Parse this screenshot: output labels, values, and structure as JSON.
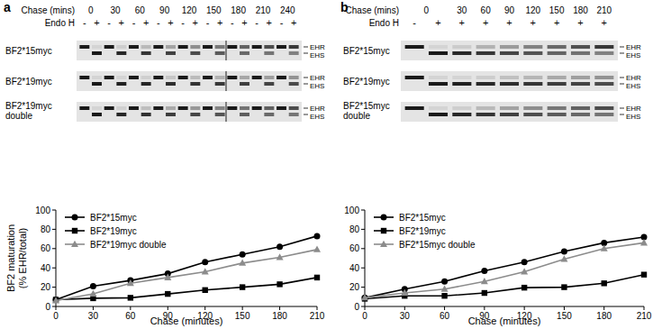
{
  "chart_data": [
    {
      "type": "line",
      "x_label": "Chase (minutes)",
      "y_label": [
        "BF2 maturation",
        "(% EHR/total)"
      ],
      "x": [
        0,
        30,
        60,
        90,
        120,
        150,
        180,
        210
      ],
      "xlim": [
        0,
        210
      ],
      "xticks": [
        0,
        30,
        60,
        90,
        120,
        150,
        180,
        210
      ],
      "ylim": [
        0,
        100
      ],
      "yticks": [
        0,
        20,
        40,
        60,
        80,
        100
      ],
      "legend": "upper-left",
      "series": [
        {
          "name": "BF2*15myc",
          "color": "#000000",
          "marker": "circle",
          "values": [
            7,
            21,
            27,
            34,
            46,
            54,
            62,
            73
          ]
        },
        {
          "name": "BF2*19myc",
          "color": "#000000",
          "marker": "square",
          "values": [
            7,
            8.5,
            9,
            13,
            17,
            20,
            23,
            30
          ]
        },
        {
          "name": "BF2*19myc double",
          "color": "#8c8c8c",
          "marker": "triangle",
          "values": [
            6,
            13,
            24,
            30,
            36,
            45,
            51,
            59
          ]
        }
      ]
    },
    {
      "type": "line",
      "x_label": "Chase (minutes)",
      "x": [
        0,
        30,
        60,
        90,
        120,
        150,
        180,
        210
      ],
      "xlim": [
        0,
        210
      ],
      "xticks": [
        0,
        30,
        60,
        90,
        120,
        150,
        180,
        210
      ],
      "ylim": [
        0,
        100
      ],
      "yticks": [
        0,
        20,
        40,
        60,
        80,
        100
      ],
      "legend": "upper-left",
      "series": [
        {
          "name": "BF2*15myc",
          "color": "#000000",
          "marker": "circle",
          "values": [
            9,
            18,
            26,
            37,
            46,
            57,
            66,
            72
          ]
        },
        {
          "name": "BF2*19myc",
          "color": "#000000",
          "marker": "square",
          "values": [
            8,
            11,
            11,
            14,
            19.5,
            20,
            24,
            33
          ]
        },
        {
          "name": "BF2*15myc double",
          "color": "#8c8c8c",
          "marker": "triangle",
          "values": [
            9,
            14,
            18,
            26,
            36,
            49,
            60,
            66
          ]
        }
      ]
    }
  ],
  "gels": [
    {
      "panel_label": "a",
      "chase_label": "Chase (mins)",
      "endo_label": "Endo H",
      "chase_times": [
        0,
        30,
        60,
        90,
        120,
        150,
        180,
        210,
        240
      ],
      "lanes_per_time": [
        2,
        2,
        2,
        2,
        2,
        2,
        2,
        2,
        2
      ],
      "endo_signs": [
        "-",
        "+",
        "-",
        "+",
        "-",
        "+",
        "-",
        "+",
        "-",
        "+",
        "-",
        "+",
        "-",
        "+",
        "-",
        "+",
        "-",
        "+"
      ],
      "rows": [
        [
          "BF2*15myc"
        ],
        [
          "BF2*19myc"
        ],
        [
          "BF2*19myc",
          "double"
        ]
      ],
      "band_labels": [
        "EHR",
        "EHS"
      ]
    },
    {
      "panel_label": "b",
      "chase_label": "Chase (mins)",
      "endo_label": "Endo H",
      "chase_times": [
        0,
        30,
        60,
        90,
        120,
        150,
        180,
        210
      ],
      "lanes_per_time": [
        2,
        1,
        1,
        1,
        1,
        1,
        1,
        1
      ],
      "endo_signs": [
        "-",
        "+",
        "+",
        "+",
        "+",
        "+",
        "+",
        "+",
        "+"
      ],
      "rows": [
        [
          "BF2*15myc"
        ],
        [
          "BF2*19myc"
        ],
        [
          "BF2*15myc",
          "double"
        ]
      ],
      "band_labels": [
        "EHR",
        "EHS"
      ]
    }
  ]
}
